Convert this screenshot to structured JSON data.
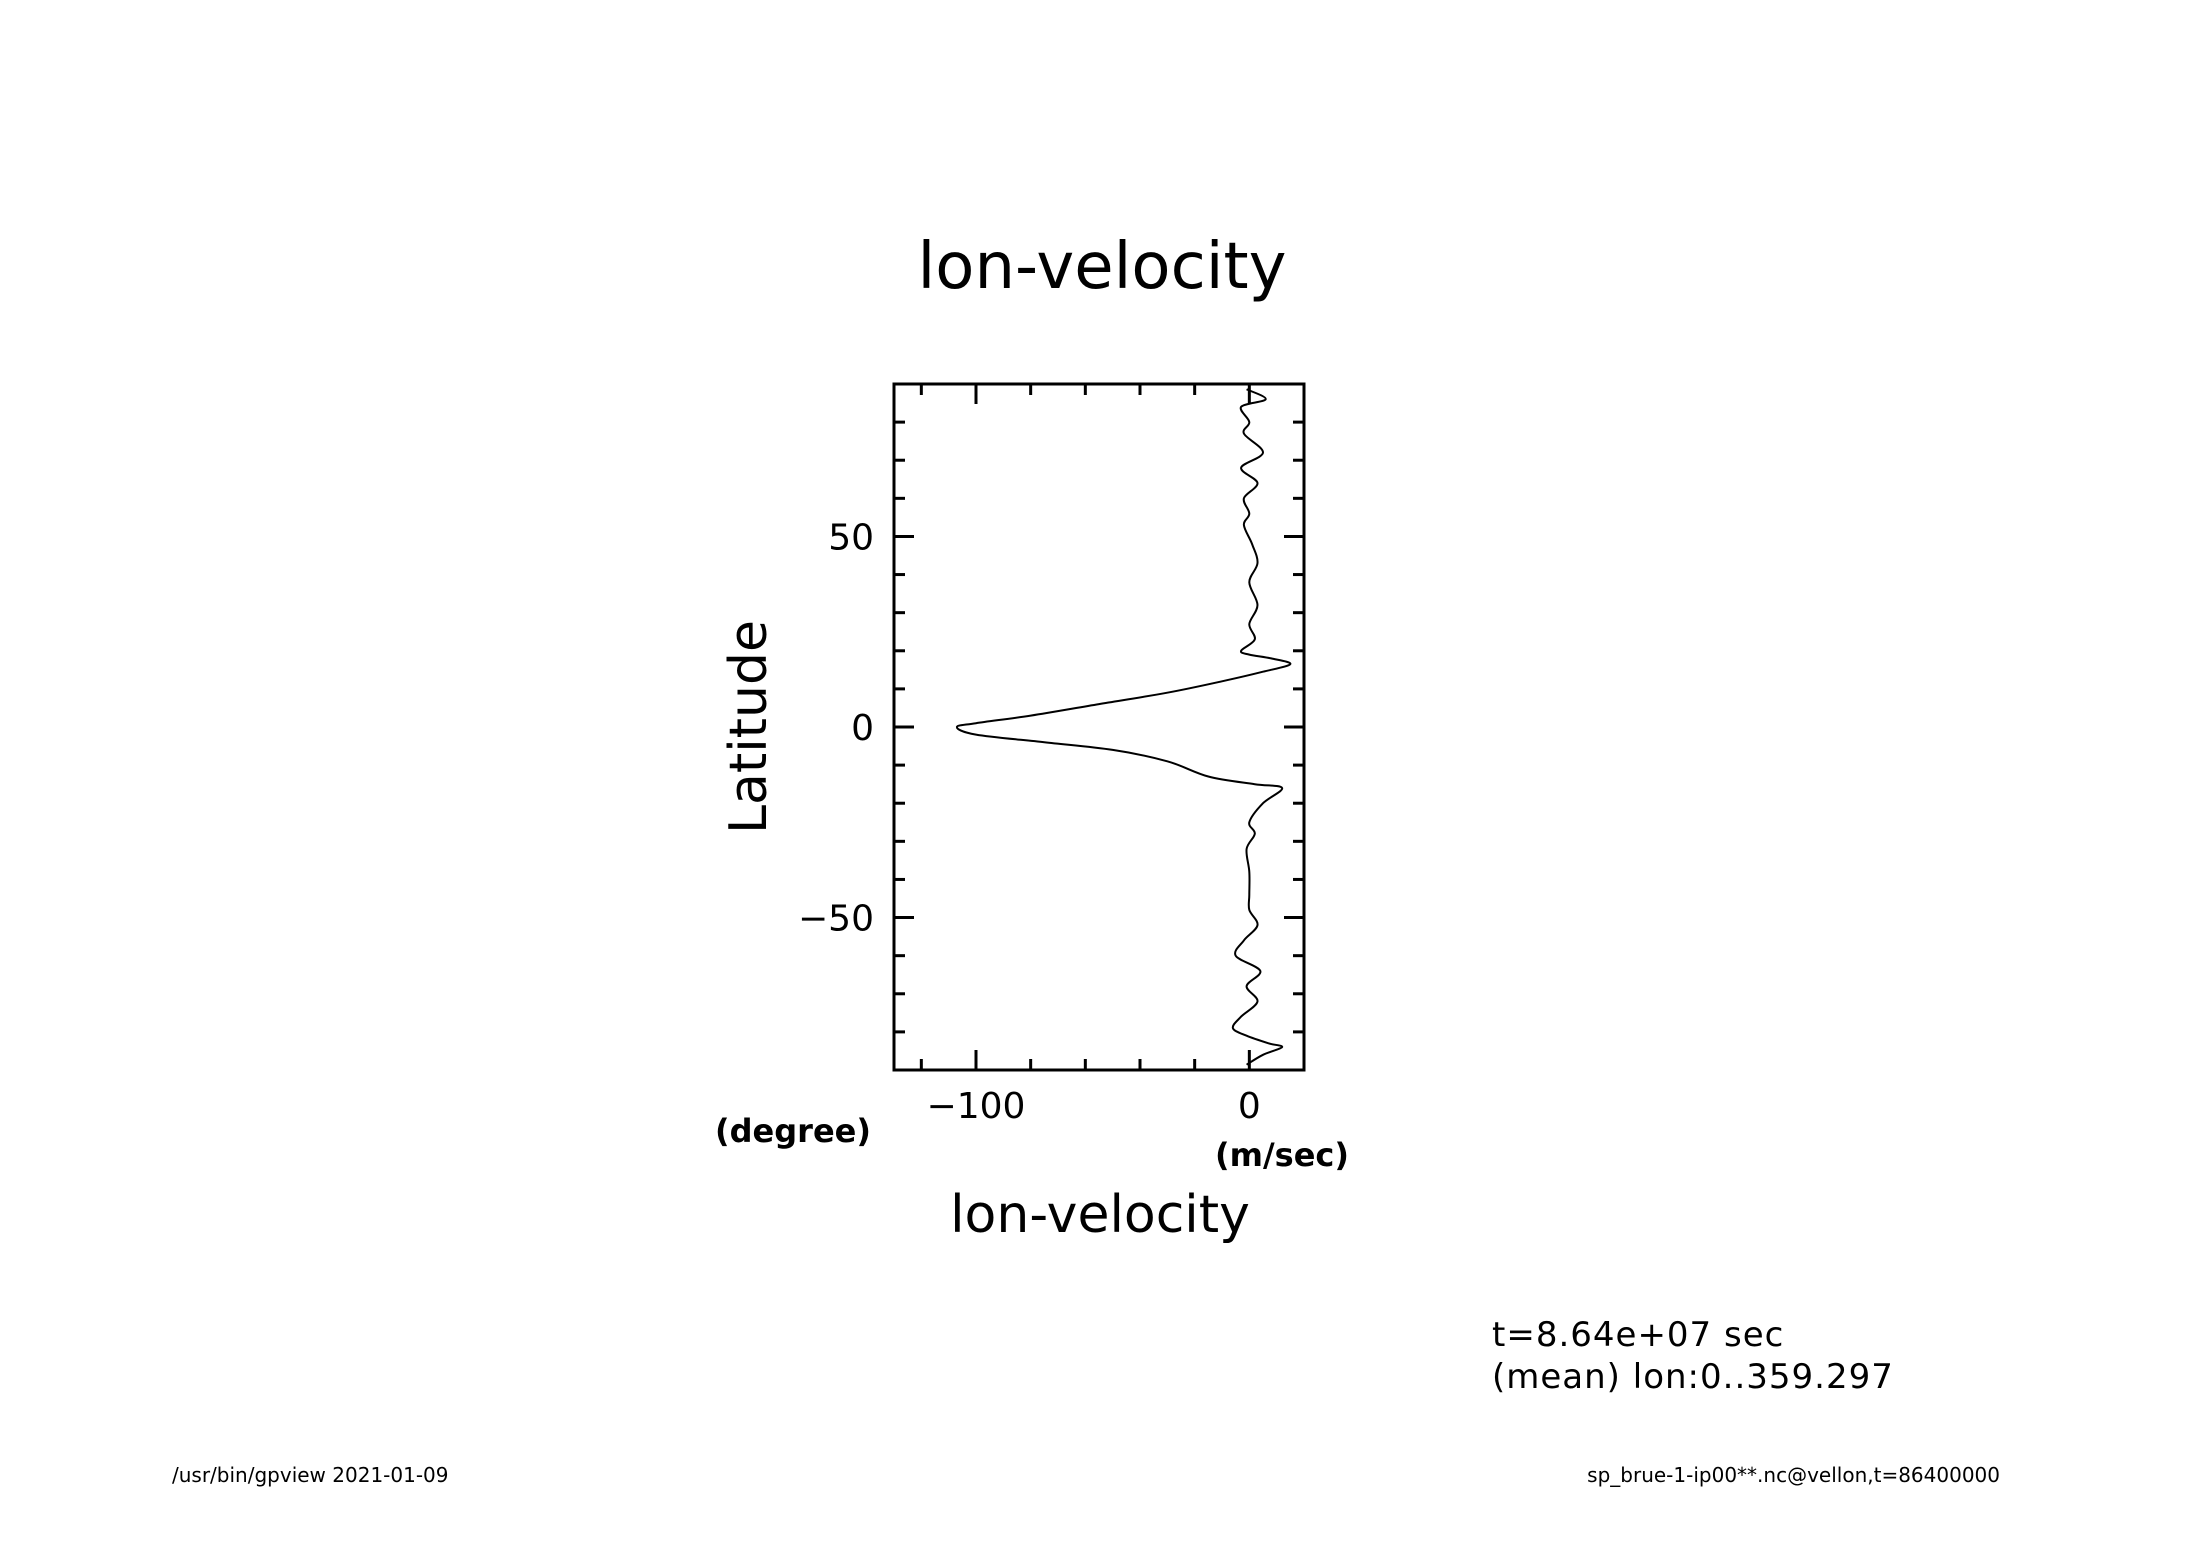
{
  "chart_data": {
    "type": "line",
    "title": "lon-velocity",
    "xlabel": "lon-velocity",
    "ylabel": "Latitude",
    "x_unit": "(m/sec)",
    "y_unit": "(degree)",
    "xlim": [
      -130,
      20
    ],
    "ylim": [
      -90,
      90
    ],
    "x_ticks": [
      {
        "value": -100,
        "label": "−100"
      },
      {
        "value": 0,
        "label": "0"
      }
    ],
    "y_ticks": [
      {
        "value": 50,
        "label": "50"
      },
      {
        "value": 0,
        "label": "0"
      },
      {
        "value": -50,
        "label": "−50"
      }
    ],
    "x_minor_step": 20,
    "y_minor_step": 10,
    "grid": false,
    "series": [
      {
        "points": [
          [
            -1,
            88.6
          ],
          [
            6,
            86
          ],
          [
            -3,
            84
          ],
          [
            0,
            80
          ],
          [
            -2,
            77
          ],
          [
            5,
            72
          ],
          [
            -3,
            68
          ],
          [
            3,
            64
          ],
          [
            -2,
            60
          ],
          [
            0,
            56
          ],
          [
            -2,
            53
          ],
          [
            1,
            48
          ],
          [
            3,
            43
          ],
          [
            0,
            38
          ],
          [
            3,
            32
          ],
          [
            0,
            27
          ],
          [
            2,
            23
          ],
          [
            -3,
            20
          ],
          [
            0,
            19
          ],
          [
            8,
            18
          ],
          [
            15,
            16.5
          ],
          [
            5,
            14.5
          ],
          [
            -10,
            12
          ],
          [
            -30,
            9
          ],
          [
            -55,
            6
          ],
          [
            -80,
            3
          ],
          [
            -100,
            1
          ],
          [
            -107,
            0
          ],
          [
            -100,
            -2
          ],
          [
            -75,
            -4
          ],
          [
            -50,
            -6
          ],
          [
            -30,
            -9
          ],
          [
            -15,
            -13
          ],
          [
            2,
            -15
          ],
          [
            12,
            -16
          ],
          [
            5,
            -20
          ],
          [
            0,
            -25
          ],
          [
            2,
            -28
          ],
          [
            -1,
            -32
          ],
          [
            0,
            -38
          ],
          [
            0,
            -44
          ],
          [
            0,
            -48
          ],
          [
            3,
            -52
          ],
          [
            -2,
            -56
          ],
          [
            -5,
            -60
          ],
          [
            4,
            -64
          ],
          [
            -1,
            -68
          ],
          [
            3,
            -72
          ],
          [
            -3,
            -76
          ],
          [
            -6,
            -79
          ],
          [
            -1,
            -81
          ],
          [
            7,
            -83
          ],
          [
            12,
            -84
          ],
          [
            5,
            -86
          ],
          [
            -1,
            -88.6
          ]
        ]
      }
    ]
  },
  "info": {
    "line1": "t=8.64e+07 sec",
    "line2": "(mean) lon:0..359.297"
  },
  "footer": {
    "left": "/usr/bin/gpview   2021-01-09",
    "right": "sp_brue-1-ip00**.nc@vellon,t=86400000"
  }
}
